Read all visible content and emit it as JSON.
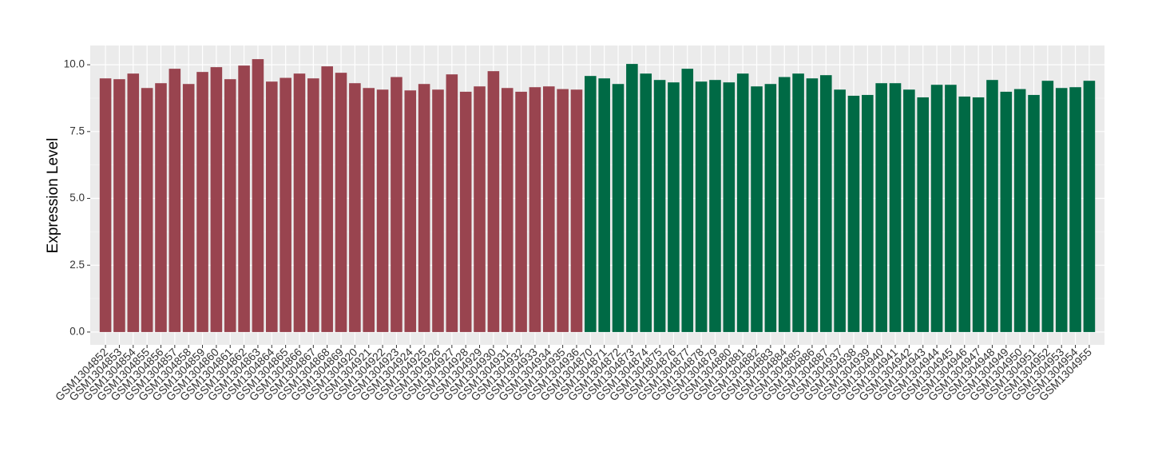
{
  "chart_data": {
    "type": "bar",
    "y_label": "Expression Level",
    "categories": [
      "GSM1304852",
      "GSM1304853",
      "GSM1304854",
      "GSM1304855",
      "GSM1304856",
      "GSM1304857",
      "GSM1304858",
      "GSM1304859",
      "GSM1304860",
      "GSM1304861",
      "GSM1304862",
      "GSM1304863",
      "GSM1304864",
      "GSM1304865",
      "GSM1304866",
      "GSM1304867",
      "GSM1304868",
      "GSM1304869",
      "GSM1304920",
      "GSM1304921",
      "GSM1304922",
      "GSM1304923",
      "GSM1304924",
      "GSM1304925",
      "GSM1304926",
      "GSM1304927",
      "GSM1304928",
      "GSM1304929",
      "GSM1304930",
      "GSM1304931",
      "GSM1304932",
      "GSM1304933",
      "GSM1304934",
      "GSM1304935",
      "GSM1304936",
      "GSM1304870",
      "GSM1304871",
      "GSM1304872",
      "GSM1304873",
      "GSM1304874",
      "GSM1304875",
      "GSM1304876",
      "GSM1304877",
      "GSM1304878",
      "GSM1304879",
      "GSM1304880",
      "GSM1304881",
      "GSM1304882",
      "GSM1304883",
      "GSM1304884",
      "GSM1304885",
      "GSM1304886",
      "GSM1304887",
      "GSM1304937",
      "GSM1304938",
      "GSM1304939",
      "GSM1304940",
      "GSM1304941",
      "GSM1304942",
      "GSM1304943",
      "GSM1304944",
      "GSM1304945",
      "GSM1304946",
      "GSM1304947",
      "GSM1304948",
      "GSM1304949",
      "GSM1304950",
      "GSM1304951",
      "GSM1304952",
      "GSM1304953",
      "GSM1304954",
      "GSM1304955"
    ],
    "values": [
      9.49,
      9.46,
      9.67,
      9.13,
      9.31,
      9.85,
      9.28,
      9.73,
      9.91,
      9.46,
      9.97,
      10.21,
      9.37,
      9.51,
      9.67,
      9.49,
      9.94,
      9.7,
      9.31,
      9.13,
      9.07,
      9.54,
      9.04,
      9.28,
      9.07,
      9.64,
      8.99,
      9.19,
      9.76,
      9.13,
      8.99,
      9.16,
      9.19,
      9.09,
      9.07,
      9.58,
      9.49,
      9.28,
      10.03,
      9.67,
      9.43,
      9.34,
      9.85,
      9.37,
      9.43,
      9.34,
      9.67,
      9.19,
      9.28,
      9.54,
      9.67,
      9.49,
      9.61,
      9.07,
      8.84,
      8.87,
      9.31,
      9.31,
      9.07,
      8.78,
      9.25,
      9.25,
      8.81,
      8.78,
      9.43,
      8.99,
      9.09,
      8.87,
      9.4,
      9.13,
      9.16,
      9.4
    ],
    "colors": [
      "#99444f",
      "#99444f",
      "#99444f",
      "#99444f",
      "#99444f",
      "#99444f",
      "#99444f",
      "#99444f",
      "#99444f",
      "#99444f",
      "#99444f",
      "#99444f",
      "#99444f",
      "#99444f",
      "#99444f",
      "#99444f",
      "#99444f",
      "#99444f",
      "#99444f",
      "#99444f",
      "#99444f",
      "#99444f",
      "#99444f",
      "#99444f",
      "#99444f",
      "#99444f",
      "#99444f",
      "#99444f",
      "#99444f",
      "#99444f",
      "#99444f",
      "#99444f",
      "#99444f",
      "#99444f",
      "#99444f",
      "#006a45",
      "#006a45",
      "#006a45",
      "#006a45",
      "#006a45",
      "#006a45",
      "#006a45",
      "#006a45",
      "#006a45",
      "#006a45",
      "#006a45",
      "#006a45",
      "#006a45",
      "#006a45",
      "#006a45",
      "#006a45",
      "#006a45",
      "#006a45",
      "#006a45",
      "#006a45",
      "#006a45",
      "#006a45",
      "#006a45",
      "#006a45",
      "#006a45",
      "#006a45",
      "#006a45",
      "#006a45",
      "#006a45",
      "#006a45",
      "#006a45",
      "#006a45",
      "#006a45",
      "#006a45",
      "#006a45",
      "#006a45",
      "#006a45"
    ],
    "ylim": [
      -0.48,
      10.72
    ],
    "yticks": [
      {
        "value": 0,
        "label": "0.0"
      },
      {
        "value": 2.5,
        "label": "2.5"
      },
      {
        "value": 5,
        "label": "5.0"
      },
      {
        "value": 7.5,
        "label": "7.5"
      },
      {
        "value": 10,
        "label": "10.0"
      }
    ],
    "grid": true
  }
}
